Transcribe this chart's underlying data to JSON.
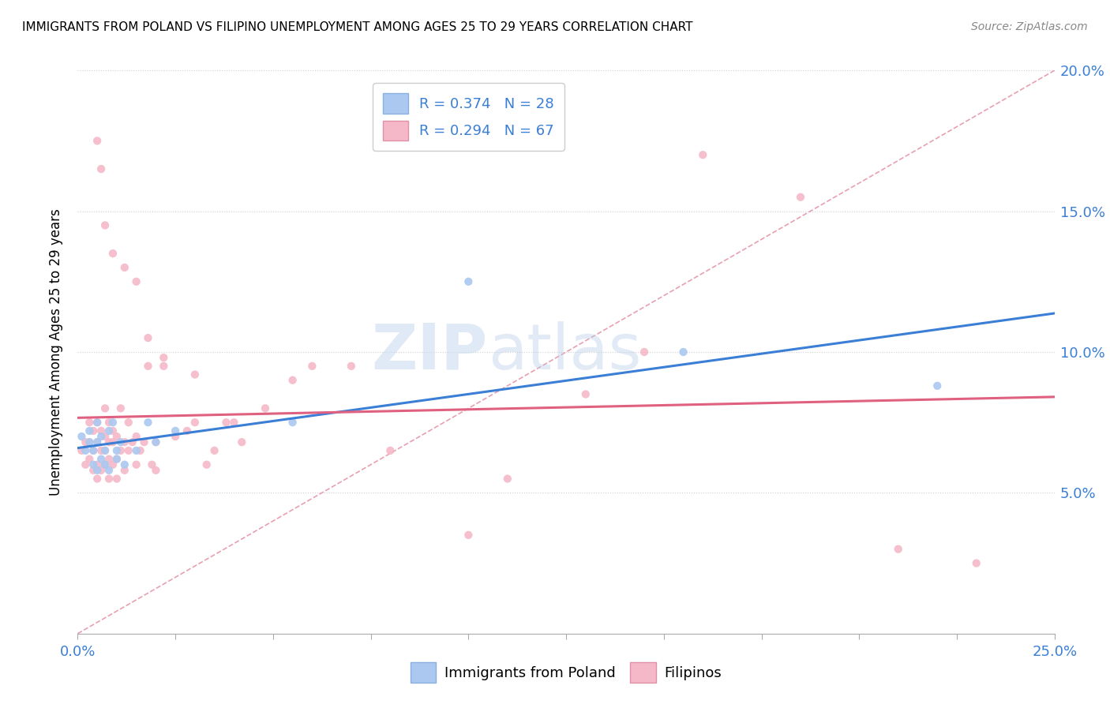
{
  "title": "IMMIGRANTS FROM POLAND VS FILIPINO UNEMPLOYMENT AMONG AGES 25 TO 29 YEARS CORRELATION CHART",
  "source": "Source: ZipAtlas.com",
  "ylabel": "Unemployment Among Ages 25 to 29 years",
  "ylabel_right_ticks": [
    "5.0%",
    "10.0%",
    "15.0%",
    "20.0%"
  ],
  "legend1_label": "R = 0.374   N = 28",
  "legend2_label": "R = 0.294   N = 67",
  "legend_bottom1": "Immigrants from Poland",
  "legend_bottom2": "Filipinos",
  "poland_color": "#aac8f0",
  "filipino_color": "#f5b8c8",
  "poland_line_color": "#3a7fd5",
  "filipino_line_color": "#e06080",
  "diagonal_color": "#e8a0b0",
  "watermark_zip": "ZIP",
  "watermark_atlas": "atlas",
  "xlim": [
    0.0,
    0.25
  ],
  "ylim": [
    0.0,
    0.2
  ],
  "poland_scatter_x": [
    0.001,
    0.002,
    0.003,
    0.003,
    0.004,
    0.004,
    0.005,
    0.005,
    0.005,
    0.006,
    0.006,
    0.007,
    0.007,
    0.008,
    0.008,
    0.009,
    0.01,
    0.01,
    0.011,
    0.012,
    0.015,
    0.018,
    0.02,
    0.025,
    0.055,
    0.1,
    0.155,
    0.22
  ],
  "poland_scatter_y": [
    0.07,
    0.065,
    0.072,
    0.068,
    0.065,
    0.06,
    0.068,
    0.075,
    0.058,
    0.07,
    0.062,
    0.065,
    0.06,
    0.072,
    0.058,
    0.075,
    0.065,
    0.062,
    0.068,
    0.06,
    0.065,
    0.075,
    0.068,
    0.072,
    0.075,
    0.125,
    0.1,
    0.088
  ],
  "filipino_scatter_x": [
    0.001,
    0.002,
    0.002,
    0.003,
    0.003,
    0.003,
    0.004,
    0.004,
    0.004,
    0.005,
    0.005,
    0.005,
    0.005,
    0.006,
    0.006,
    0.006,
    0.007,
    0.007,
    0.007,
    0.007,
    0.008,
    0.008,
    0.008,
    0.008,
    0.009,
    0.009,
    0.009,
    0.01,
    0.01,
    0.01,
    0.011,
    0.011,
    0.012,
    0.012,
    0.013,
    0.013,
    0.014,
    0.015,
    0.015,
    0.016,
    0.017,
    0.018,
    0.019,
    0.02,
    0.02,
    0.022,
    0.025,
    0.028,
    0.03,
    0.033,
    0.035,
    0.038,
    0.04,
    0.042,
    0.048,
    0.055,
    0.06,
    0.07,
    0.08,
    0.1,
    0.11,
    0.13,
    0.145,
    0.16,
    0.185,
    0.21,
    0.23
  ],
  "filipino_scatter_y": [
    0.065,
    0.06,
    0.068,
    0.062,
    0.068,
    0.075,
    0.058,
    0.065,
    0.072,
    0.055,
    0.06,
    0.068,
    0.075,
    0.058,
    0.065,
    0.072,
    0.06,
    0.065,
    0.07,
    0.08,
    0.055,
    0.062,
    0.068,
    0.075,
    0.06,
    0.068,
    0.072,
    0.055,
    0.062,
    0.07,
    0.065,
    0.08,
    0.058,
    0.068,
    0.065,
    0.075,
    0.068,
    0.06,
    0.07,
    0.065,
    0.068,
    0.095,
    0.06,
    0.068,
    0.058,
    0.095,
    0.07,
    0.072,
    0.075,
    0.06,
    0.065,
    0.075,
    0.075,
    0.068,
    0.08,
    0.09,
    0.095,
    0.095,
    0.065,
    0.035,
    0.055,
    0.085,
    0.1,
    0.17,
    0.155,
    0.03,
    0.025
  ],
  "filipino_outliers_x": [
    0.005,
    0.006,
    0.007,
    0.009,
    0.012,
    0.015,
    0.018,
    0.022,
    0.03
  ],
  "filipino_outliers_y": [
    0.175,
    0.165,
    0.145,
    0.135,
    0.13,
    0.125,
    0.105,
    0.098,
    0.092
  ]
}
